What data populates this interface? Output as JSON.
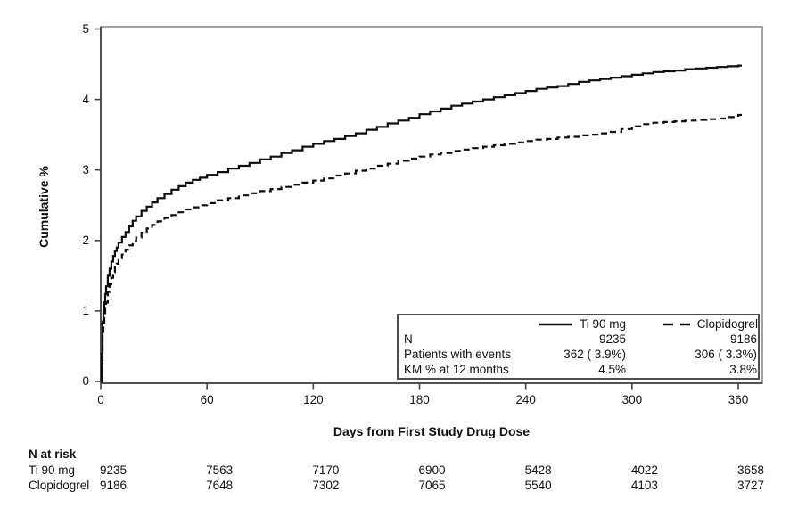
{
  "chart_data": {
    "type": "line",
    "subtype": "kaplan-meier-step",
    "title": "",
    "xlabel": "Days from First Study Drug Dose",
    "ylabel": "Cumulative %",
    "xlim": [
      0,
      373
    ],
    "ylim": [
      0,
      5
    ],
    "x_ticks": [
      0,
      60,
      120,
      180,
      240,
      300,
      360
    ],
    "y_ticks": [
      0,
      1,
      2,
      3,
      4,
      5
    ],
    "grid": false,
    "colors": {
      "line": "#0d0d0d",
      "frame": "#8a8a8a",
      "axis": "#444444",
      "text": "#111111",
      "legend_border": "#4e4e4e"
    },
    "legend": {
      "position": "bottom-right-box",
      "series": [
        {
          "name": "Ti 90 mg",
          "line_style": "solid"
        },
        {
          "name": "Clopidogrel",
          "line_style": "dashed"
        }
      ],
      "table": [
        {
          "label": "N",
          "ti90": "9235",
          "clopidogrel": "9186"
        },
        {
          "label": "Patients with events",
          "ti90": "362 ( 3.9%)",
          "clopidogrel": "306 ( 3.3%)"
        },
        {
          "label": "KM % at 12 months",
          "ti90": "4.5%",
          "clopidogrel": "3.8%"
        }
      ]
    },
    "series": [
      {
        "name": "Ti 90 mg",
        "line_style": "solid",
        "x": [
          0,
          0.5,
          1,
          1.5,
          2,
          2.5,
          3,
          4,
          5,
          6,
          7,
          8,
          9,
          10,
          12,
          14,
          16,
          18,
          20,
          23,
          26,
          29,
          32,
          36,
          40,
          44,
          48,
          52,
          56,
          60,
          66,
          72,
          78,
          84,
          90,
          96,
          102,
          108,
          114,
          120,
          126,
          132,
          138,
          144,
          150,
          156,
          162,
          168,
          174,
          180,
          186,
          192,
          198,
          204,
          210,
          216,
          222,
          228,
          234,
          240,
          246,
          252,
          258,
          264,
          270,
          276,
          282,
          288,
          294,
          300,
          306,
          312,
          318,
          324,
          330,
          336,
          342,
          348,
          354,
          360
        ],
        "y": [
          0,
          0.4,
          0.85,
          1.0,
          1.12,
          1.24,
          1.35,
          1.5,
          1.6,
          1.7,
          1.78,
          1.85,
          1.9,
          1.97,
          2.05,
          2.12,
          2.2,
          2.28,
          2.34,
          2.42,
          2.48,
          2.54,
          2.6,
          2.66,
          2.72,
          2.77,
          2.82,
          2.86,
          2.89,
          2.93,
          2.97,
          3.02,
          3.06,
          3.1,
          3.15,
          3.19,
          3.24,
          3.28,
          3.33,
          3.37,
          3.41,
          3.44,
          3.48,
          3.52,
          3.57,
          3.61,
          3.66,
          3.7,
          3.74,
          3.79,
          3.83,
          3.87,
          3.91,
          3.94,
          3.97,
          4.0,
          4.03,
          4.06,
          4.09,
          4.12,
          4.15,
          4.17,
          4.19,
          4.22,
          4.25,
          4.27,
          4.29,
          4.31,
          4.33,
          4.35,
          4.37,
          4.39,
          4.4,
          4.41,
          4.43,
          4.44,
          4.45,
          4.46,
          4.47,
          4.48
        ]
      },
      {
        "name": "Clopidogrel",
        "line_style": "dashed",
        "x": [
          0,
          0.5,
          1,
          1.5,
          2,
          2.5,
          3,
          4,
          5,
          6,
          7,
          8,
          9,
          10,
          12,
          14,
          16,
          18,
          20,
          23,
          26,
          29,
          32,
          36,
          40,
          44,
          48,
          52,
          56,
          60,
          66,
          72,
          78,
          84,
          90,
          96,
          102,
          108,
          114,
          120,
          126,
          132,
          138,
          144,
          150,
          156,
          162,
          168,
          174,
          180,
          186,
          192,
          198,
          204,
          210,
          216,
          222,
          228,
          234,
          240,
          246,
          252,
          258,
          264,
          270,
          276,
          282,
          288,
          294,
          300,
          306,
          312,
          318,
          324,
          330,
          336,
          342,
          348,
          354,
          360
        ],
        "y": [
          0,
          0.3,
          0.65,
          0.8,
          0.92,
          1.03,
          1.12,
          1.27,
          1.38,
          1.47,
          1.55,
          1.62,
          1.67,
          1.72,
          1.8,
          1.87,
          1.93,
          1.99,
          2.04,
          2.11,
          2.17,
          2.22,
          2.27,
          2.32,
          2.36,
          2.4,
          2.44,
          2.47,
          2.5,
          2.53,
          2.57,
          2.6,
          2.64,
          2.67,
          2.7,
          2.73,
          2.76,
          2.79,
          2.82,
          2.85,
          2.88,
          2.92,
          2.95,
          2.99,
          3.02,
          3.06,
          3.09,
          3.13,
          3.16,
          3.19,
          3.22,
          3.24,
          3.27,
          3.29,
          3.31,
          3.33,
          3.35,
          3.37,
          3.39,
          3.41,
          3.43,
          3.44,
          3.46,
          3.47,
          3.49,
          3.5,
          3.52,
          3.54,
          3.58,
          3.62,
          3.65,
          3.67,
          3.68,
          3.69,
          3.7,
          3.71,
          3.72,
          3.73,
          3.75,
          3.78
        ]
      }
    ],
    "at_risk": {
      "header": "N at risk",
      "rows": [
        {
          "label": "Ti 90 mg",
          "values": [
            "9235",
            "7563",
            "7170",
            "6900",
            "5428",
            "4022",
            "3658"
          ]
        },
        {
          "label": "Clopidogrel",
          "values": [
            "9186",
            "7648",
            "7302",
            "7065",
            "5540",
            "4103",
            "3727"
          ]
        }
      ]
    }
  }
}
